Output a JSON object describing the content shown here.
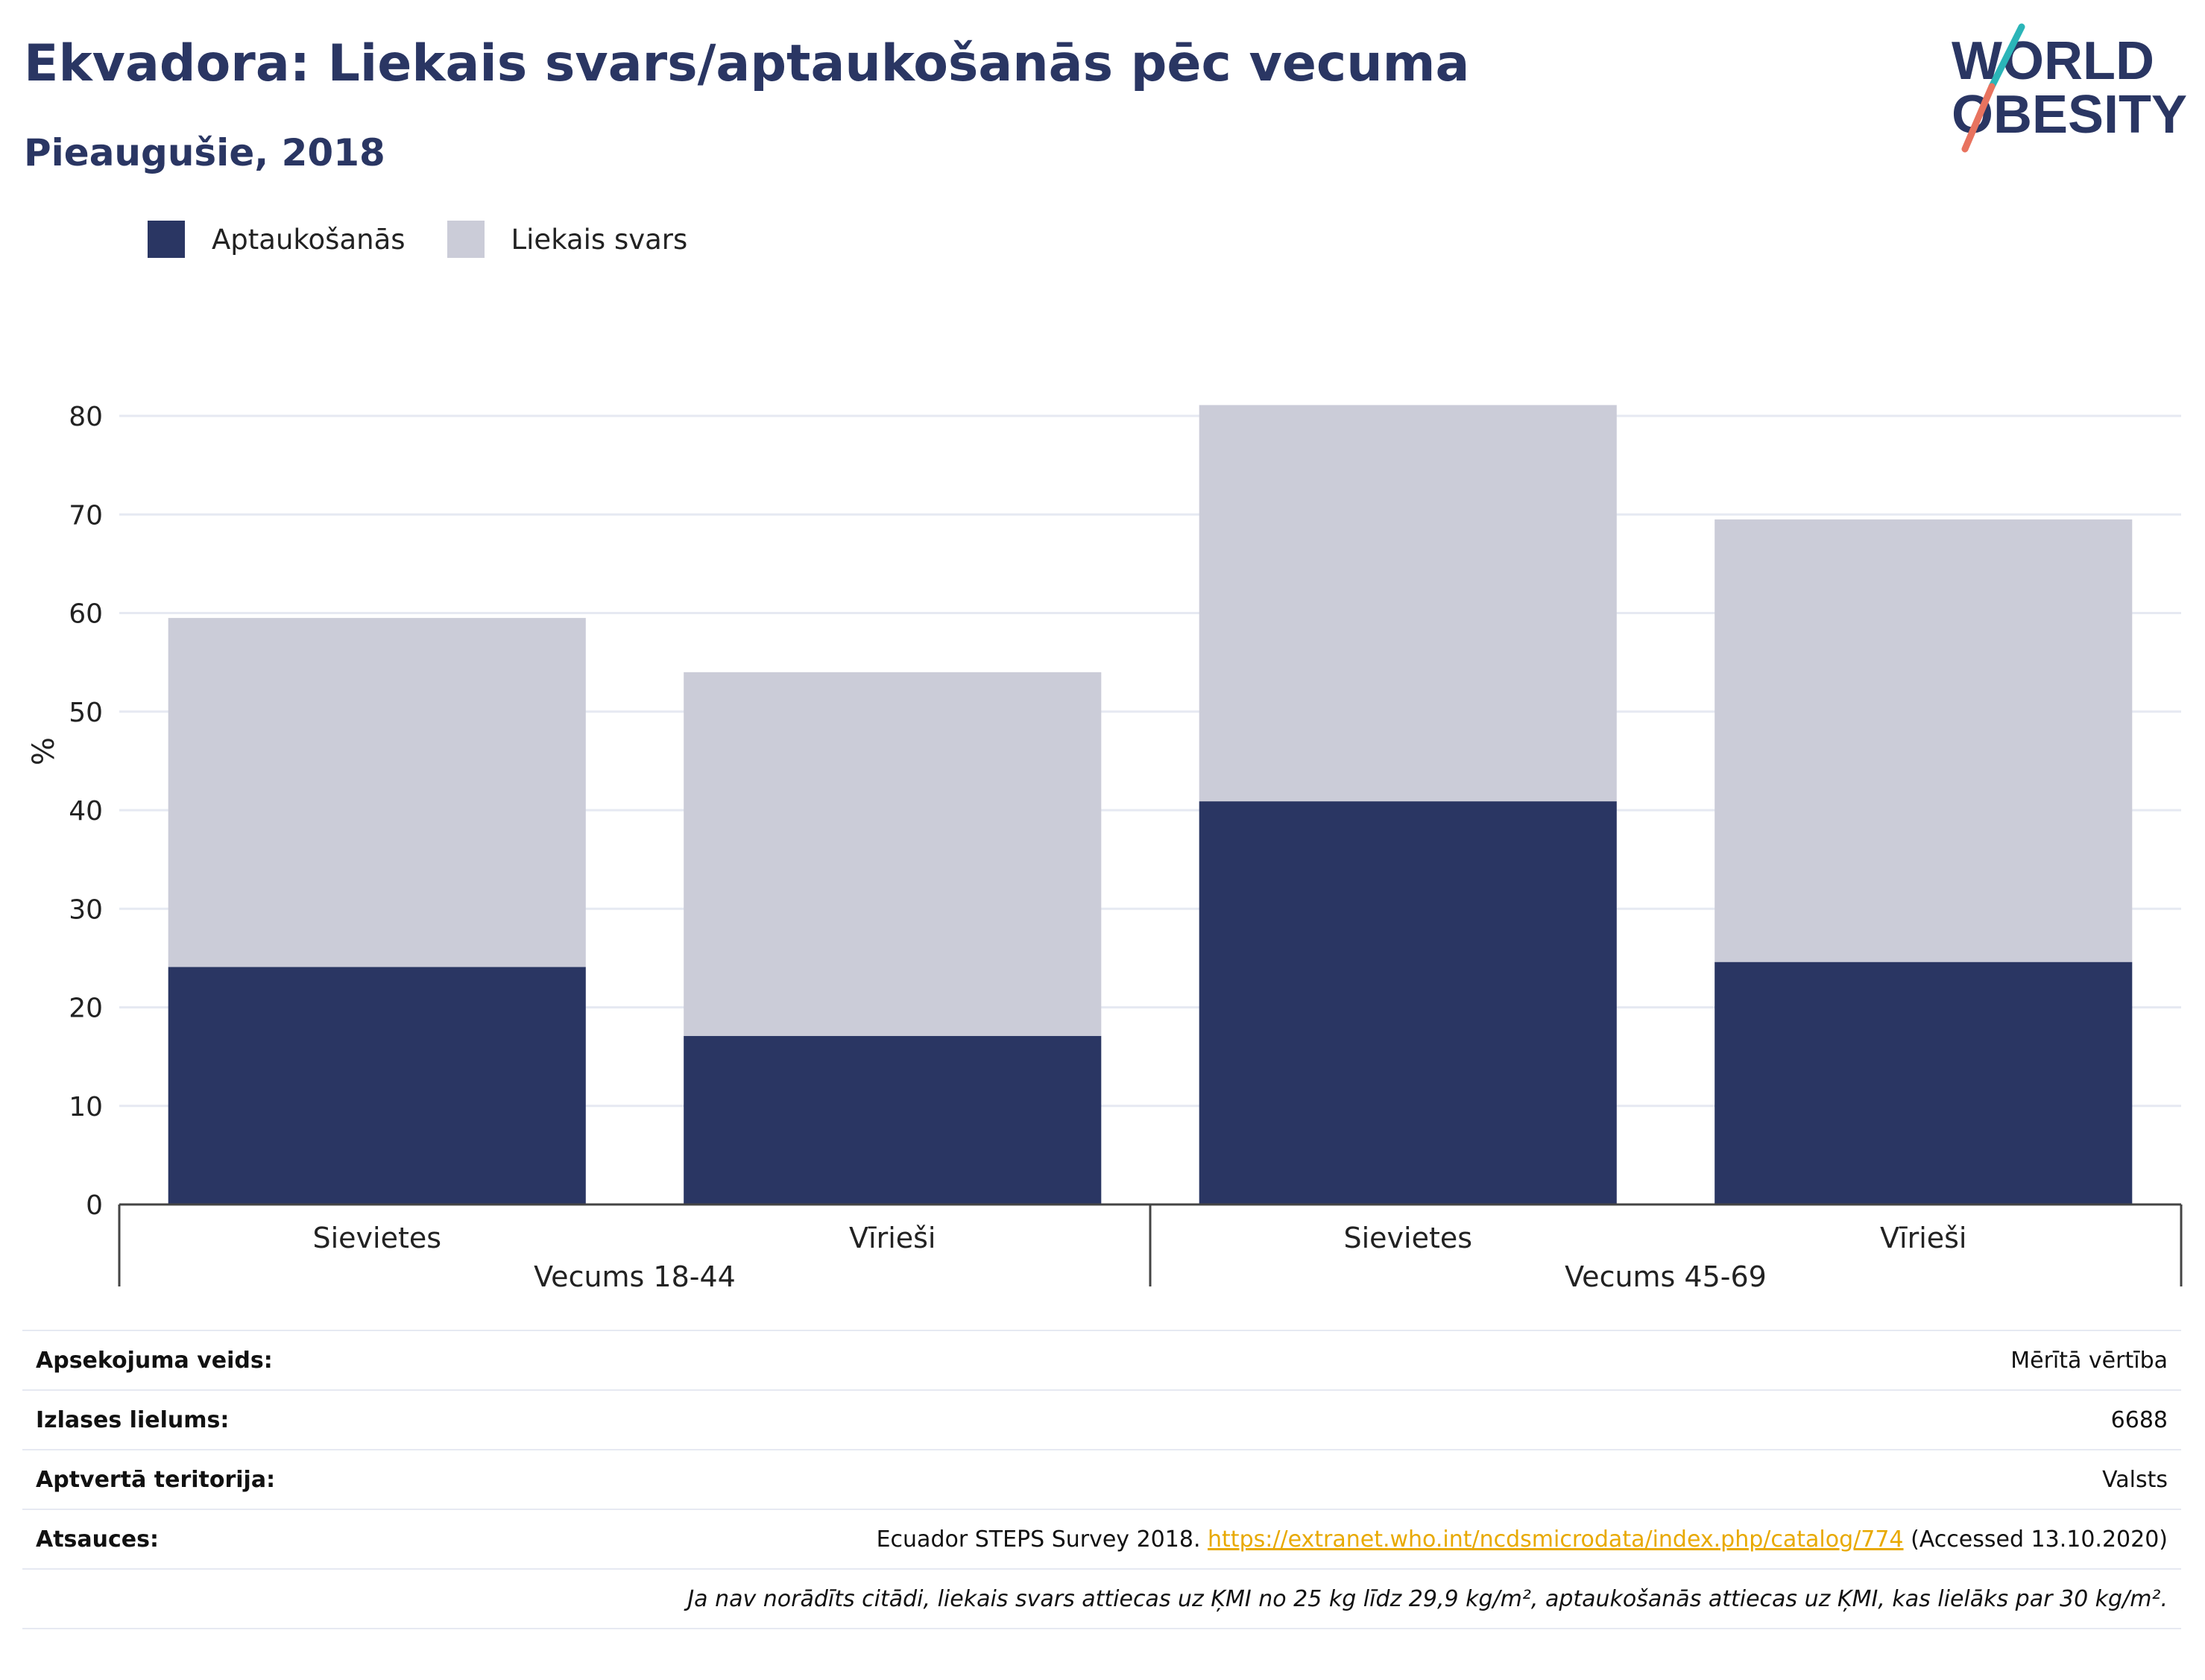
{
  "header": {
    "title": "Ekvadora: Liekais svars/aptaukošanās pēc vecuma",
    "subtitle": "Pieaugušie, 2018"
  },
  "logo": {
    "line1": "WORLD",
    "line2": "OBESITY",
    "colors": {
      "text": "#2a3663",
      "slash_top": "#2bb5b8",
      "slash_bottom": "#e8735f"
    }
  },
  "colors": {
    "obesity": "#2a3663",
    "overweight": "#cbccd8",
    "grid": "#e6e9f2",
    "axis": "#444444"
  },
  "chart_data": {
    "type": "bar",
    "stacked": true,
    "ylabel": "%",
    "ylim": [
      0,
      80
    ],
    "yticks": [
      0,
      10,
      20,
      30,
      40,
      50,
      60,
      70,
      80
    ],
    "grid": true,
    "legend_position": "top-left",
    "categories": [
      "Sievietes",
      "Vīrieši",
      "Sievietes",
      "Vīrieši"
    ],
    "groups": [
      {
        "label": "Vecums 18-44",
        "categories": [
          0,
          1
        ]
      },
      {
        "label": "Vecums 45-69",
        "categories": [
          2,
          3
        ]
      }
    ],
    "series": [
      {
        "name": "Aptaukošanās",
        "color": "#2a3663",
        "values": [
          24.1,
          17.1,
          40.9,
          24.6
        ]
      },
      {
        "name": "Liekais svars",
        "color": "#cbccd8",
        "values": [
          35.4,
          36.9,
          40.2,
          44.9
        ]
      }
    ]
  },
  "info": {
    "rows": [
      {
        "key": "Apsekojuma veids:",
        "value": "Mērītā vērtība"
      },
      {
        "key": "Izlases lielums:",
        "value": "6688"
      },
      {
        "key": "Aptvertā teritorija:",
        "value": "Valsts"
      }
    ],
    "sources": {
      "key": "Atsauces:",
      "prefix": "Ecuador STEPS Survey 2018.",
      "link": "https://extranet.who.int/ncdsmicrodata/index.php/catalog/774",
      "suffix": "(Accessed 13.10.2020)"
    },
    "note": "Ja nav norādīts citādi, liekais svars attiecas uz ĶMI no 25 kg līdz 29,9 kg/m², aptaukošanās attiecas uz ĶMI, kas lielāks par 30 kg/m²."
  }
}
